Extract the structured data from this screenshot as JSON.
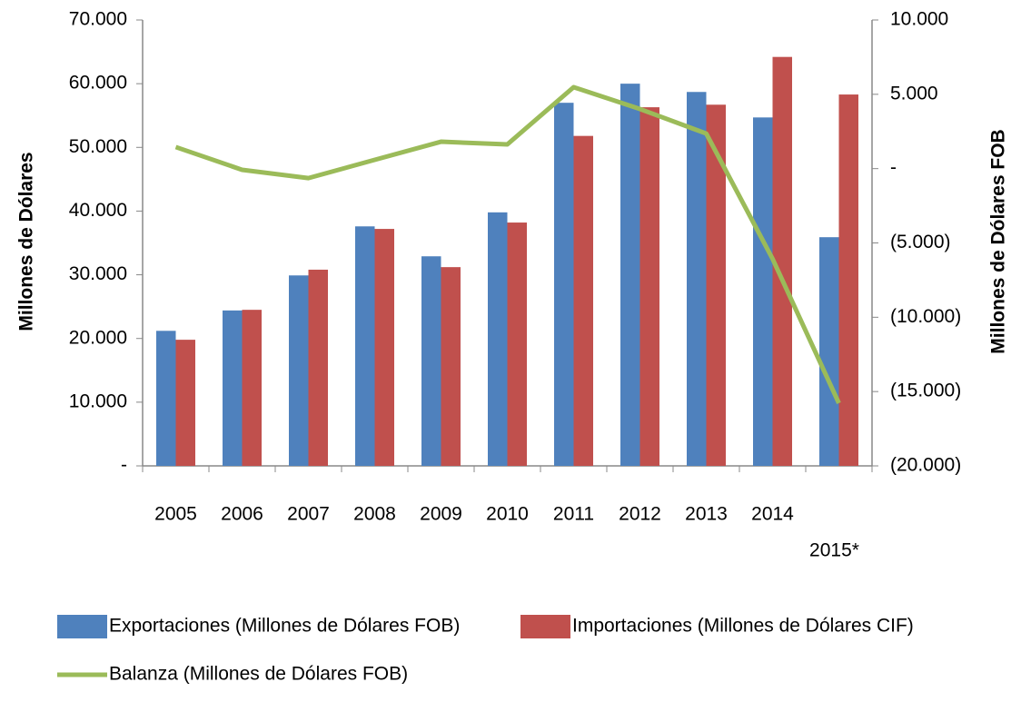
{
  "chart_data": {
    "type": "bar_line",
    "categories": [
      "2005",
      "2006",
      "2007",
      "2008",
      "2009",
      "2010",
      "2011",
      "2012",
      "2013",
      "2014",
      "2015*"
    ],
    "y_label": "Millones  de Dólares",
    "y2_label": "Millones de Dólares FOB",
    "ylim": [
      0,
      70000
    ],
    "yticks": [
      {
        "value": 0,
        "label": "-"
      },
      {
        "value": 10000,
        "label": "10.000"
      },
      {
        "value": 20000,
        "label": "20.000"
      },
      {
        "value": 30000,
        "label": "30.000"
      },
      {
        "value": 40000,
        "label": "40.000"
      },
      {
        "value": 50000,
        "label": "50.000"
      },
      {
        "value": 60000,
        "label": "60.000"
      },
      {
        "value": 70000,
        "label": "70.000"
      }
    ],
    "y2lim": [
      -20000,
      10000
    ],
    "y2ticks": [
      {
        "value": -20000,
        "label": "(20.000)"
      },
      {
        "value": -15000,
        "label": "(15.000)"
      },
      {
        "value": -10000,
        "label": "(10.000)"
      },
      {
        "value": -5000,
        "label": "(5.000)"
      },
      {
        "value": 0,
        "label": "-"
      },
      {
        "value": 5000,
        "label": "5.000"
      },
      {
        "value": 10000,
        "label": "10.000"
      }
    ],
    "series": [
      {
        "name": "Exportaciones (Millones de Dólares FOB)",
        "color": "#4f81bd",
        "type": "bar",
        "values": [
          21200,
          24400,
          29900,
          37600,
          32900,
          39800,
          57000,
          60000,
          58700,
          54700,
          35900
        ]
      },
      {
        "name": "Importaciones (Millones de Dólares CIF)",
        "color": "#c0504d",
        "type": "bar",
        "values": [
          19800,
          24500,
          30800,
          37200,
          31200,
          38200,
          51800,
          56300,
          56700,
          64200,
          58300
        ]
      },
      {
        "name": "Balanza (Millones de Dólares FOB)",
        "color": "#9bbb59",
        "type": "line",
        "axis": "y2",
        "values": [
          1450,
          -80,
          -640,
          590,
          1810,
          1630,
          5480,
          4010,
          2360,
          -6070,
          -15780
        ]
      }
    ]
  }
}
